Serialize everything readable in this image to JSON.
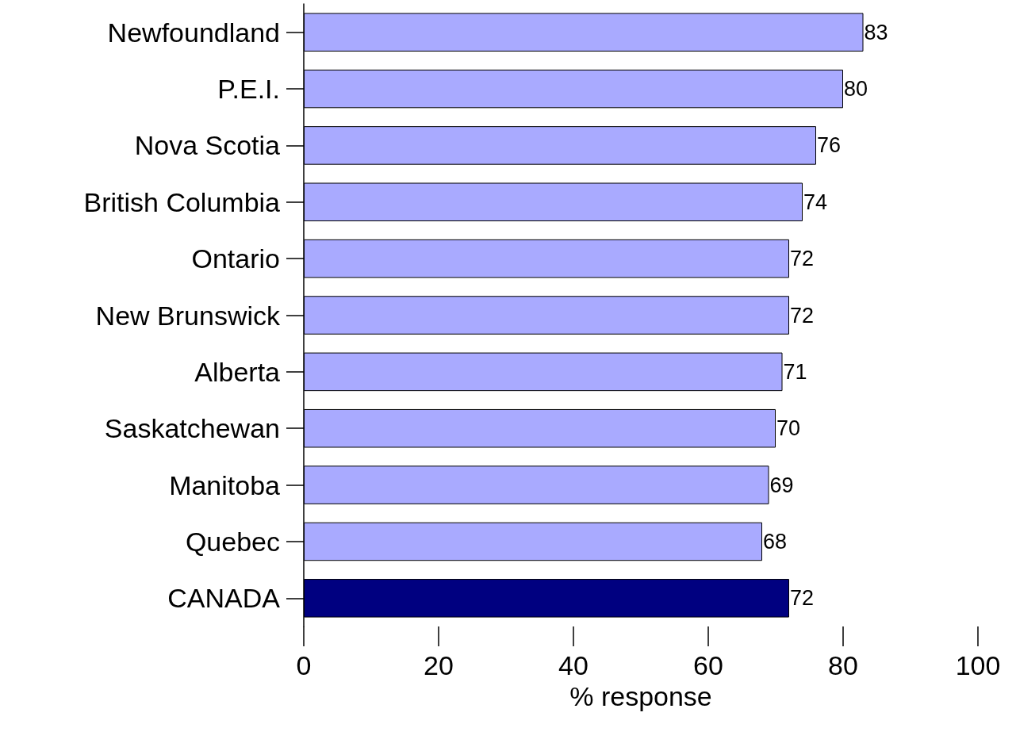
{
  "chart_data": {
    "type": "bar",
    "orientation": "horizontal",
    "xlabel": "% response",
    "categories": [
      "Newfoundland",
      "P.E.I.",
      "Nova Scotia",
      "British Columbia",
      "Ontario",
      "New Brunswick",
      "Alberta",
      "Saskatchewan",
      "Manitoba",
      "Quebec",
      "CANADA"
    ],
    "values": [
      83,
      80,
      76,
      74,
      72,
      72,
      71,
      70,
      69,
      68,
      72
    ],
    "colors": [
      "#a9aaff",
      "#a9aaff",
      "#a9aaff",
      "#a9aaff",
      "#a9aaff",
      "#a9aaff",
      "#a9aaff",
      "#a9aaff",
      "#a9aaff",
      "#a9aaff",
      "#000080"
    ],
    "xlim": [
      0,
      100
    ],
    "xticks": [
      0,
      20,
      40,
      60,
      80,
      100
    ],
    "data_labels": true
  }
}
